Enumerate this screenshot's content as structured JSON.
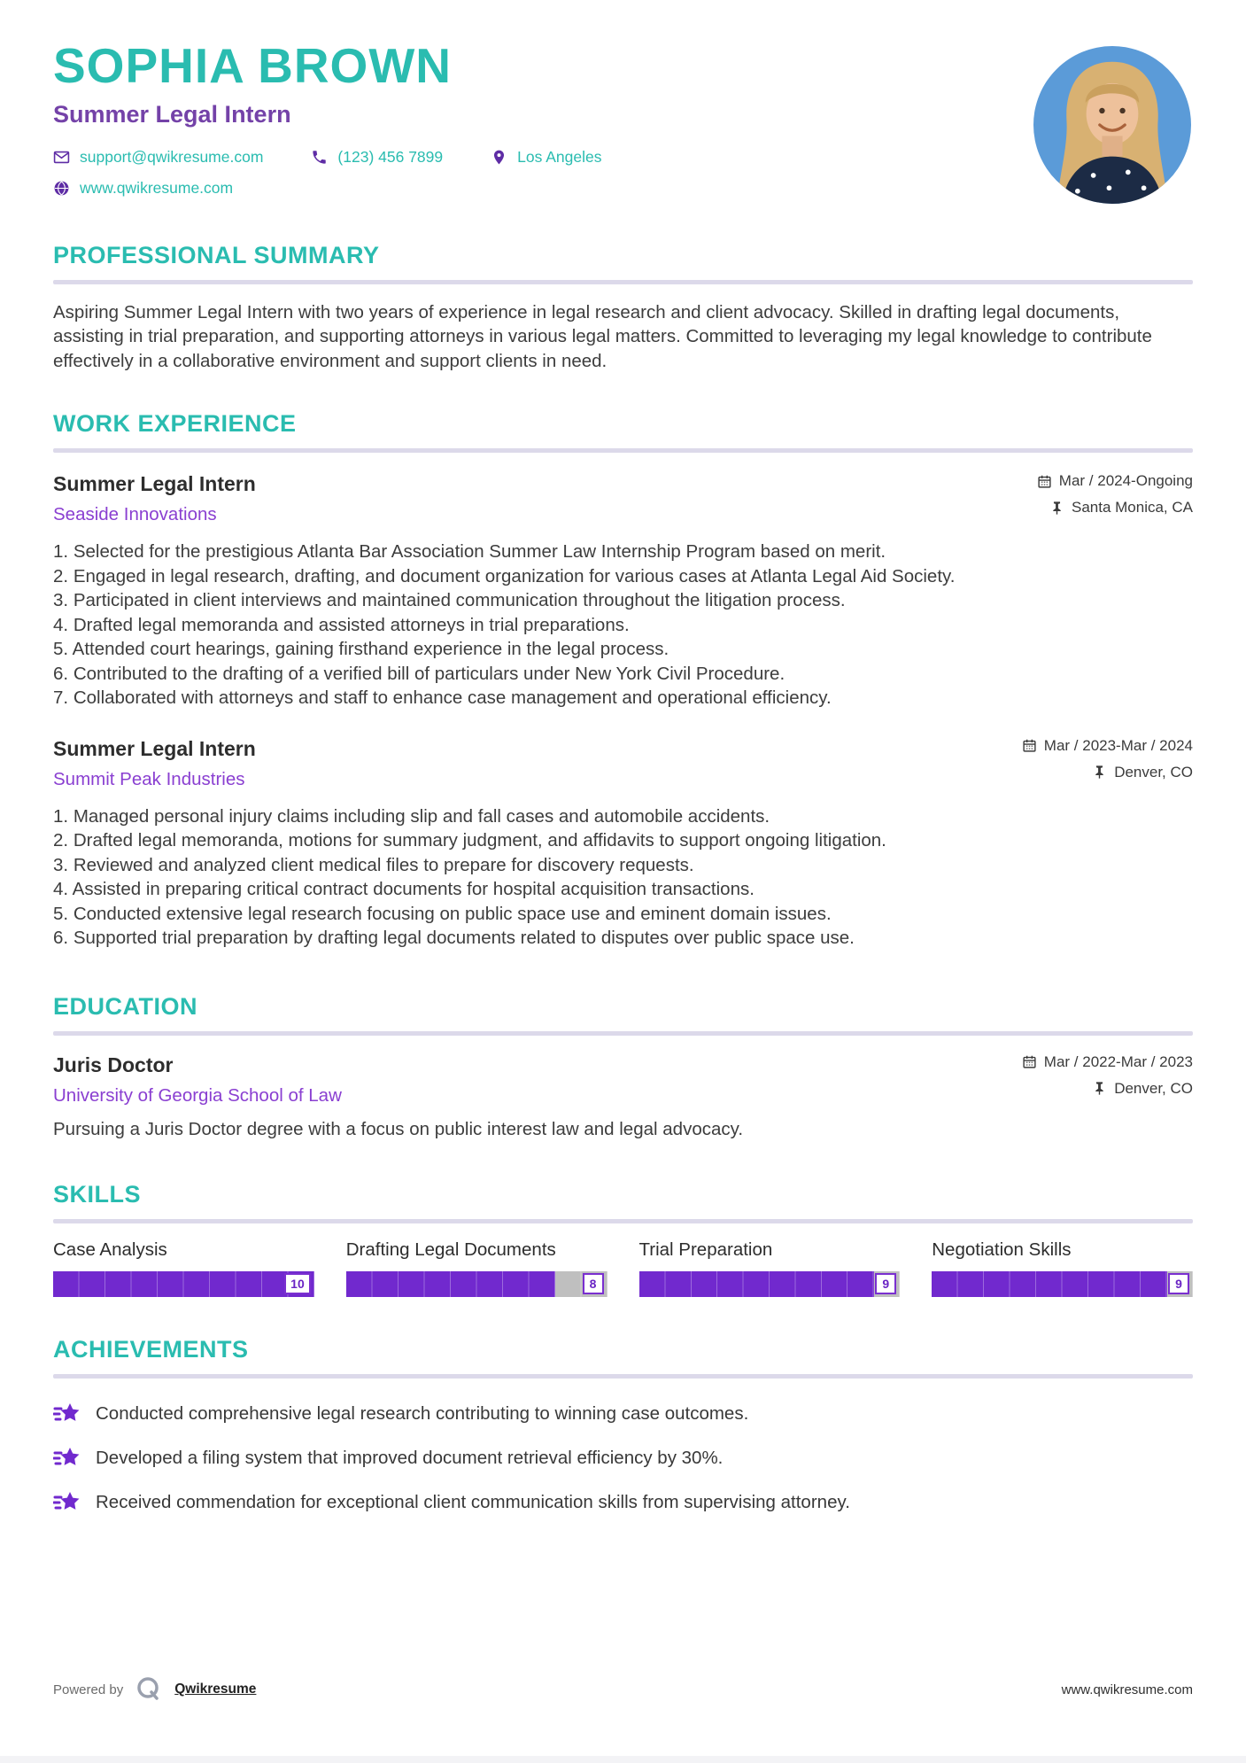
{
  "header": {
    "name": "SOPHIA BROWN",
    "title": "Summer Legal Intern",
    "contact": {
      "email": "support@qwikresume.com",
      "phone": "(123) 456 7899",
      "location": "Los Angeles",
      "website": "www.qwikresume.com"
    }
  },
  "summary": {
    "heading": "PROFESSIONAL SUMMARY",
    "text": "Aspiring Summer Legal Intern with two years of experience in legal research and client advocacy. Skilled in drafting legal documents, assisting in trial preparation, and supporting attorneys in various legal matters. Committed to leveraging my legal knowledge to contribute effectively in a collaborative environment and support clients in need."
  },
  "experience": {
    "heading": "WORK EXPERIENCE",
    "entries": [
      {
        "title": "Summer Legal Intern",
        "company": "Seaside Innovations",
        "date": "Mar / 2024-Ongoing",
        "location": "Santa Monica, CA",
        "bullets": [
          "Selected for the prestigious Atlanta Bar Association Summer Law Internship Program based on merit.",
          "Engaged in legal research, drafting, and document organization for various cases at Atlanta Legal Aid Society.",
          "Participated in client interviews and maintained communication throughout the litigation process.",
          "Drafted legal memoranda and assisted attorneys in trial preparations.",
          "Attended court hearings, gaining firsthand experience in the legal process.",
          "Contributed to the drafting of a verified bill of particulars under New York Civil Procedure.",
          "Collaborated with attorneys and staff to enhance case management and operational efficiency."
        ]
      },
      {
        "title": "Summer Legal Intern",
        "company": "Summit Peak Industries",
        "date": "Mar / 2023-Mar / 2024",
        "location": "Denver, CO",
        "bullets": [
          "Managed personal injury claims including slip and fall cases and automobile accidents.",
          "Drafted legal memoranda, motions for summary judgment, and affidavits to support ongoing litigation.",
          "Reviewed and analyzed client medical files to prepare for discovery requests.",
          "Assisted in preparing critical contract documents for hospital acquisition transactions.",
          "Conducted extensive legal research focusing on public space use and eminent domain issues.",
          "Supported trial preparation by drafting legal documents related to disputes over public space use."
        ]
      }
    ]
  },
  "education": {
    "heading": "EDUCATION",
    "degree": "Juris Doctor",
    "school": "University of Georgia School of Law",
    "date": "Mar / 2022-Mar / 2023",
    "location": "Denver, CO",
    "description": "Pursuing a Juris Doctor degree with a focus on public interest law and legal advocacy."
  },
  "skills": {
    "heading": "SKILLS",
    "items": [
      {
        "label": "Case Analysis",
        "level": 10
      },
      {
        "label": "Drafting Legal Documents",
        "level": 8
      },
      {
        "label": "Trial Preparation",
        "level": 9
      },
      {
        "label": "Negotiation Skills",
        "level": 9
      }
    ]
  },
  "achievements": {
    "heading": "ACHIEVEMENTS",
    "items": [
      "Conducted comprehensive legal research contributing to winning case outcomes.",
      "Developed a filing system that improved document retrieval efficiency by 30%.",
      "Received commendation for exceptional client communication skills from supervising attorney."
    ]
  },
  "footer": {
    "powered_by": "Powered by",
    "brand": "Qwikresume",
    "website": "www.qwikresume.com"
  },
  "icons": {
    "email": "envelope-icon",
    "phone": "phone-icon",
    "location": "map-pin-icon",
    "website": "globe-icon",
    "date": "calendar-icon",
    "place": "pushpin-icon",
    "achievement": "star-badge-icon",
    "brand": "q-circle-icon"
  },
  "colors": {
    "accent_teal": "#2abcb0",
    "title_purple": "#7442a8",
    "link_purple": "#8a3fd1",
    "icon_purple": "#5e2ca5",
    "bar_fill": "#7129ce",
    "bar_track": "#bfbfbf",
    "divider": "#dcd9ea",
    "body_text": "#3d3d3d",
    "photo_background": "#5b9bd8"
  }
}
